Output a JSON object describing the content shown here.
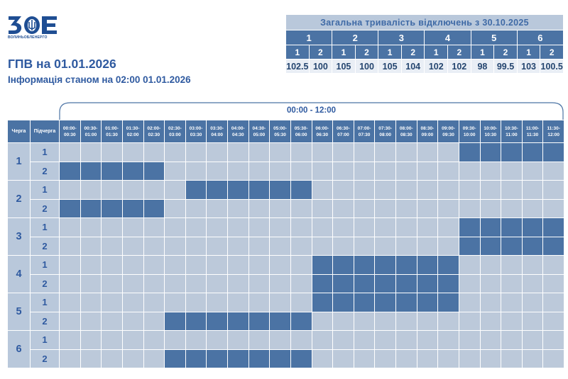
{
  "logo": {
    "caption": "ВОЛИНЬОБЛЕНЕРГО",
    "icon": "voe-logo-icon",
    "color": "#1f4e93"
  },
  "title": "ГПВ на 01.01.2026",
  "subtitle": "Інформація станом на 02:00 01.01.2026",
  "summary": {
    "heading": "Загальна тривалість відключень з 30.10.2025",
    "queues": [
      "1",
      "2",
      "3",
      "4",
      "5",
      "6"
    ],
    "subqueues": [
      "1",
      "2",
      "1",
      "2",
      "1",
      "2",
      "1",
      "2",
      "1",
      "2",
      "1",
      "2"
    ],
    "values": [
      "102.5",
      "100",
      "105",
      "100",
      "105",
      "104",
      "102",
      "102",
      "98",
      "99.5",
      "103",
      "100.5"
    ]
  },
  "schedule": {
    "period": "00:00 - 12:00",
    "queue_header": "Черга",
    "subqueue_header": "Підчерга",
    "slots": [
      [
        "00:00-",
        "00:30"
      ],
      [
        "00:30-",
        "01:00"
      ],
      [
        "01:00-",
        "01:30"
      ],
      [
        "01:30-",
        "02:00"
      ],
      [
        "02:00-",
        "02:30"
      ],
      [
        "02:30-",
        "03:00"
      ],
      [
        "03:00-",
        "03:30"
      ],
      [
        "03:30-",
        "04:00"
      ],
      [
        "04:00-",
        "04:30"
      ],
      [
        "04:30-",
        "05:00"
      ],
      [
        "05:00-",
        "05:30"
      ],
      [
        "05:30-",
        "06:00"
      ],
      [
        "06:00-",
        "06:30"
      ],
      [
        "06:30-",
        "07:00"
      ],
      [
        "07:00-",
        "07:30"
      ],
      [
        "07:30-",
        "08:00"
      ],
      [
        "08:00-",
        "08:30"
      ],
      [
        "08:30-",
        "09:00"
      ],
      [
        "09:00-",
        "09:30"
      ],
      [
        "09:30-",
        "10:00"
      ],
      [
        "10:00-",
        "10:30"
      ],
      [
        "10:30-",
        "11:00"
      ],
      [
        "11:00-",
        "11:30"
      ],
      [
        "11:30-",
        "12:00"
      ]
    ],
    "rows": [
      {
        "queue": "1",
        "sub": "1",
        "off": [
          0,
          0,
          0,
          0,
          0,
          0,
          0,
          0,
          0,
          0,
          0,
          0,
          0,
          0,
          0,
          0,
          0,
          0,
          0,
          1,
          1,
          1,
          1,
          1
        ]
      },
      {
        "queue": "1",
        "sub": "2",
        "off": [
          1,
          1,
          1,
          1,
          1,
          0,
          0,
          0,
          0,
          0,
          0,
          0,
          0,
          0,
          0,
          0,
          0,
          0,
          0,
          0,
          0,
          0,
          0,
          0
        ]
      },
      {
        "queue": "2",
        "sub": "1",
        "off": [
          0,
          0,
          0,
          0,
          0,
          0,
          1,
          1,
          1,
          1,
          1,
          1,
          0,
          0,
          0,
          0,
          0,
          0,
          0,
          0,
          0,
          0,
          0,
          0
        ]
      },
      {
        "queue": "2",
        "sub": "2",
        "off": [
          1,
          1,
          1,
          1,
          1,
          0,
          0,
          0,
          0,
          0,
          0,
          0,
          0,
          0,
          0,
          0,
          0,
          0,
          0,
          0,
          0,
          0,
          0,
          0
        ]
      },
      {
        "queue": "3",
        "sub": "1",
        "off": [
          0,
          0,
          0,
          0,
          0,
          0,
          0,
          0,
          0,
          0,
          0,
          0,
          0,
          0,
          0,
          0,
          0,
          0,
          0,
          1,
          1,
          1,
          1,
          1
        ]
      },
      {
        "queue": "3",
        "sub": "2",
        "off": [
          0,
          0,
          0,
          0,
          0,
          0,
          0,
          0,
          0,
          0,
          0,
          0,
          0,
          0,
          0,
          0,
          0,
          0,
          0,
          1,
          1,
          1,
          1,
          1
        ]
      },
      {
        "queue": "4",
        "sub": "1",
        "off": [
          0,
          0,
          0,
          0,
          0,
          0,
          0,
          0,
          0,
          0,
          0,
          0,
          1,
          1,
          1,
          1,
          1,
          1,
          1,
          0,
          0,
          0,
          0,
          0
        ]
      },
      {
        "queue": "4",
        "sub": "2",
        "off": [
          0,
          0,
          0,
          0,
          0,
          0,
          0,
          0,
          0,
          0,
          0,
          0,
          1,
          1,
          1,
          1,
          1,
          1,
          1,
          0,
          0,
          0,
          0,
          0
        ]
      },
      {
        "queue": "5",
        "sub": "1",
        "off": [
          0,
          0,
          0,
          0,
          0,
          0,
          0,
          0,
          0,
          0,
          0,
          0,
          1,
          1,
          1,
          1,
          1,
          1,
          1,
          0,
          0,
          0,
          0,
          0
        ]
      },
      {
        "queue": "5",
        "sub": "2",
        "off": [
          0,
          0,
          0,
          0,
          0,
          1,
          1,
          1,
          1,
          1,
          1,
          1,
          0,
          0,
          0,
          0,
          0,
          0,
          0,
          0,
          0,
          0,
          0,
          0
        ]
      },
      {
        "queue": "6",
        "sub": "1",
        "off": [
          0,
          0,
          0,
          0,
          0,
          0,
          0,
          0,
          0,
          0,
          0,
          0,
          0,
          0,
          0,
          0,
          0,
          0,
          0,
          0,
          0,
          0,
          0,
          0
        ]
      },
      {
        "queue": "6",
        "sub": "2",
        "off": [
          0,
          0,
          0,
          0,
          0,
          1,
          1,
          1,
          1,
          1,
          1,
          1,
          0,
          0,
          0,
          0,
          0,
          0,
          0,
          0,
          0,
          0,
          0,
          0
        ]
      }
    ],
    "colors": {
      "off": "#4b73a4",
      "on": "#bcc9da",
      "label_bg": "#b9c8db",
      "header_bg": "#4b73a4"
    }
  }
}
